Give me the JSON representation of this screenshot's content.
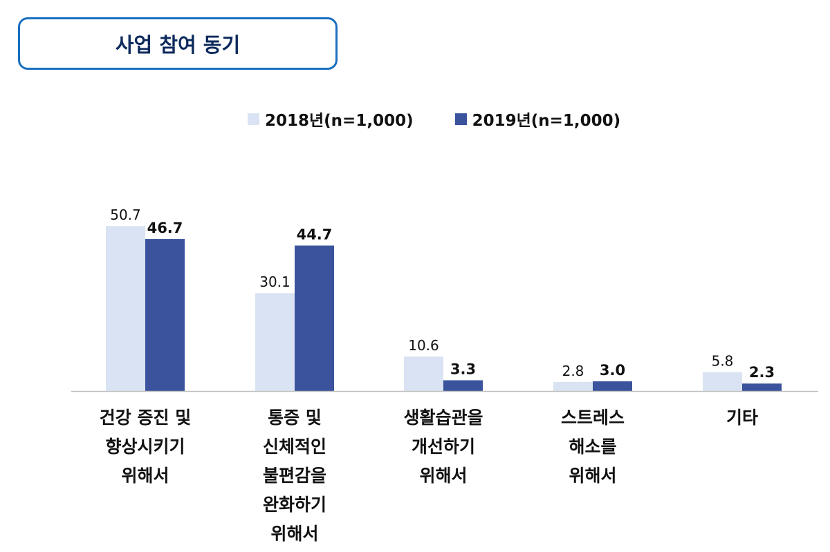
{
  "chart_data": {
    "type": "bar",
    "title": "사업 참여 동기",
    "categories": [
      [
        "건강 증진 및",
        "향상시키기",
        "위해서"
      ],
      [
        "통증 및",
        "신체적인",
        "불편감을",
        "완화하기",
        "위해서"
      ],
      [
        "생활습관을",
        "개선하기",
        "위해서"
      ],
      [
        "스트레스",
        "해소를",
        "위해서"
      ],
      [
        "기타"
      ]
    ],
    "series": [
      {
        "name": "2018년(n=1,000)",
        "values": [
          50.7,
          30.1,
          10.6,
          2.8,
          5.8
        ],
        "color": "#dae3f3",
        "label_bold": false
      },
      {
        "name": "2019년(n=1,000)",
        "values": [
          46.7,
          44.7,
          3.3,
          3.0,
          2.3
        ],
        "color": "#3a539c",
        "label_bold": true
      }
    ],
    "value_labels": [
      [
        "50.7",
        "30.1",
        "10.6",
        "2.8",
        "5.8"
      ],
      [
        "46.7",
        "44.7",
        "3.3",
        "3.0",
        "2.3"
      ]
    ],
    "ylim": [
      0,
      55
    ],
    "grid": false,
    "legend_position": "top-center"
  }
}
